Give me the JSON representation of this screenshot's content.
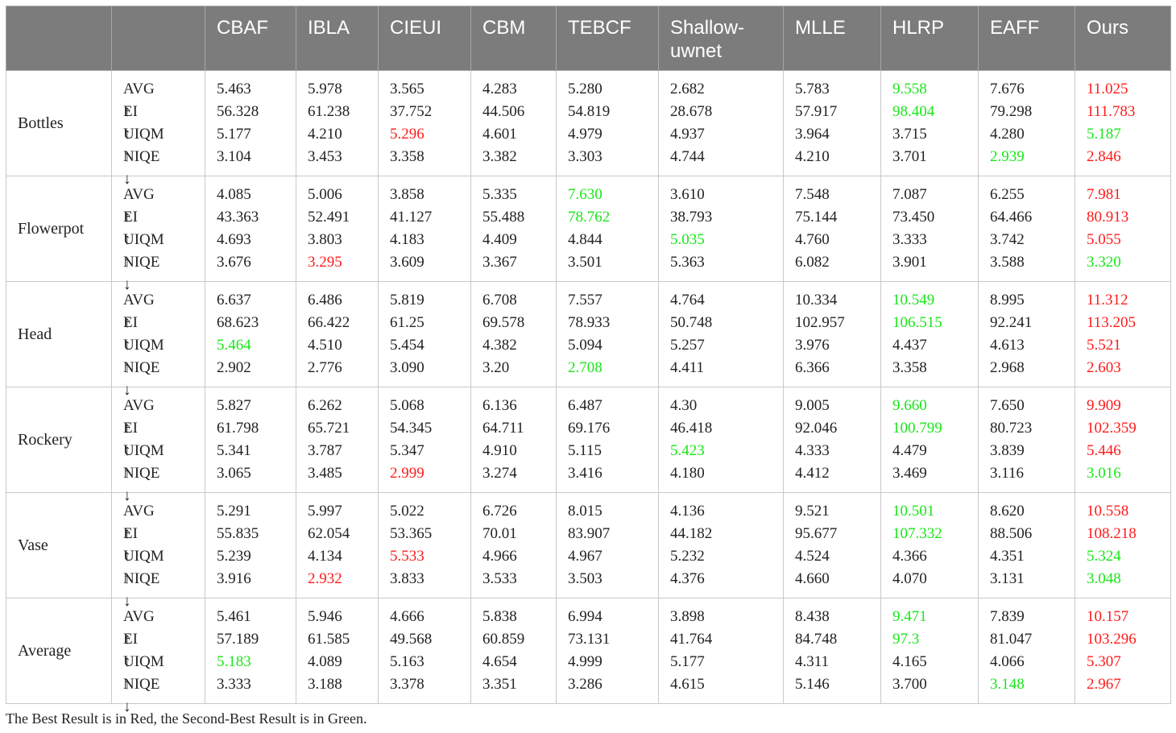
{
  "table": {
    "columns": [
      "CBAF",
      "IBLA",
      "CIEUI",
      "CBM",
      "TEBCF",
      "Shallow-uwnet",
      "MLLE",
      "HLRP",
      "EAFF",
      "Ours"
    ],
    "metric_rows": [
      {
        "name": "AVG",
        "arrow": "↑"
      },
      {
        "name": "EI",
        "arrow": "↑"
      },
      {
        "name": "UIQM",
        "arrow": "↑"
      },
      {
        "name": "NIQE",
        "arrow": "↓"
      }
    ],
    "groups": [
      {
        "name": "Bottles",
        "cells": [
          [
            [
              "5.463",
              "n"
            ],
            [
              "56.328",
              "n"
            ],
            [
              "5.177",
              "n"
            ],
            [
              "3.104",
              "n"
            ]
          ],
          [
            [
              "5.978",
              "n"
            ],
            [
              "61.238",
              "n"
            ],
            [
              "4.210",
              "n"
            ],
            [
              "3.453",
              "n"
            ]
          ],
          [
            [
              "3.565",
              "n"
            ],
            [
              "37.752",
              "n"
            ],
            [
              "5.296",
              "r"
            ],
            [
              "3.358",
              "n"
            ]
          ],
          [
            [
              "4.283",
              "n"
            ],
            [
              "44.506",
              "n"
            ],
            [
              "4.601",
              "n"
            ],
            [
              "3.382",
              "n"
            ]
          ],
          [
            [
              "5.280",
              "n"
            ],
            [
              "54.819",
              "n"
            ],
            [
              "4.979",
              "n"
            ],
            [
              "3.303",
              "n"
            ]
          ],
          [
            [
              "2.682",
              "n"
            ],
            [
              "28.678",
              "n"
            ],
            [
              "4.937",
              "n"
            ],
            [
              "4.744",
              "n"
            ]
          ],
          [
            [
              "5.783",
              "n"
            ],
            [
              "57.917",
              "n"
            ],
            [
              "3.964",
              "n"
            ],
            [
              "4.210",
              "n"
            ]
          ],
          [
            [
              "9.558",
              "g"
            ],
            [
              "98.404",
              "g"
            ],
            [
              "3.715",
              "n"
            ],
            [
              "3.701",
              "n"
            ]
          ],
          [
            [
              "7.676",
              "n"
            ],
            [
              "79.298",
              "n"
            ],
            [
              "4.280",
              "n"
            ],
            [
              "2.939",
              "g"
            ]
          ],
          [
            [
              "11.025",
              "r"
            ],
            [
              "111.783",
              "r"
            ],
            [
              "5.187",
              "g"
            ],
            [
              "2.846",
              "r"
            ]
          ]
        ]
      },
      {
        "name": "Flowerpot",
        "cells": [
          [
            [
              "4.085",
              "n"
            ],
            [
              "43.363",
              "n"
            ],
            [
              "4.693",
              "n"
            ],
            [
              "3.676",
              "n"
            ]
          ],
          [
            [
              "5.006",
              "n"
            ],
            [
              "52.491",
              "n"
            ],
            [
              "3.803",
              "n"
            ],
            [
              "3.295",
              "r"
            ]
          ],
          [
            [
              "3.858",
              "n"
            ],
            [
              "41.127",
              "n"
            ],
            [
              "4.183",
              "n"
            ],
            [
              "3.609",
              "n"
            ]
          ],
          [
            [
              "5.335",
              "n"
            ],
            [
              "55.488",
              "n"
            ],
            [
              "4.409",
              "n"
            ],
            [
              "3.367",
              "n"
            ]
          ],
          [
            [
              "7.630",
              "g"
            ],
            [
              "78.762",
              "g"
            ],
            [
              "4.844",
              "n"
            ],
            [
              "3.501",
              "n"
            ]
          ],
          [
            [
              "3.610",
              "n"
            ],
            [
              "38.793",
              "n"
            ],
            [
              "5.035",
              "g"
            ],
            [
              "5.363",
              "n"
            ]
          ],
          [
            [
              "7.548",
              "n"
            ],
            [
              "75.144",
              "n"
            ],
            [
              "4.760",
              "n"
            ],
            [
              "6.082",
              "n"
            ]
          ],
          [
            [
              "7.087",
              "n"
            ],
            [
              "73.450",
              "n"
            ],
            [
              "3.333",
              "n"
            ],
            [
              "3.901",
              "n"
            ]
          ],
          [
            [
              "6.255",
              "n"
            ],
            [
              "64.466",
              "n"
            ],
            [
              "3.742",
              "n"
            ],
            [
              "3.588",
              "n"
            ]
          ],
          [
            [
              "7.981",
              "r"
            ],
            [
              "80.913",
              "r"
            ],
            [
              "5.055",
              "r"
            ],
            [
              "3.320",
              "g"
            ]
          ]
        ]
      },
      {
        "name": "Head",
        "cells": [
          [
            [
              "6.637",
              "n"
            ],
            [
              "68.623",
              "n"
            ],
            [
              "5.464",
              "g"
            ],
            [
              "2.902",
              "n"
            ]
          ],
          [
            [
              "6.486",
              "n"
            ],
            [
              "66.422",
              "n"
            ],
            [
              "4.510",
              "n"
            ],
            [
              "2.776",
              "n"
            ]
          ],
          [
            [
              "5.819",
              "n"
            ],
            [
              "61.25",
              "n"
            ],
            [
              "5.454",
              "n"
            ],
            [
              "3.090",
              "n"
            ]
          ],
          [
            [
              "6.708",
              "n"
            ],
            [
              "69.578",
              "n"
            ],
            [
              "4.382",
              "n"
            ],
            [
              "3.20",
              "n"
            ]
          ],
          [
            [
              "7.557",
              "n"
            ],
            [
              "78.933",
              "n"
            ],
            [
              "5.094",
              "n"
            ],
            [
              "2.708",
              "g"
            ]
          ],
          [
            [
              "4.764",
              "n"
            ],
            [
              "50.748",
              "n"
            ],
            [
              "5.257",
              "n"
            ],
            [
              "4.411",
              "n"
            ]
          ],
          [
            [
              "10.334",
              "n"
            ],
            [
              "102.957",
              "n"
            ],
            [
              "3.976",
              "n"
            ],
            [
              "6.366",
              "n"
            ]
          ],
          [
            [
              "10.549",
              "g"
            ],
            [
              "106.515",
              "g"
            ],
            [
              "4.437",
              "n"
            ],
            [
              "3.358",
              "n"
            ]
          ],
          [
            [
              "8.995",
              "n"
            ],
            [
              "92.241",
              "n"
            ],
            [
              "4.613",
              "n"
            ],
            [
              "2.968",
              "n"
            ]
          ],
          [
            [
              "11.312",
              "r"
            ],
            [
              "113.205",
              "r"
            ],
            [
              "5.521",
              "r"
            ],
            [
              "2.603",
              "r"
            ]
          ]
        ]
      },
      {
        "name": "Rockery",
        "cells": [
          [
            [
              "5.827",
              "n"
            ],
            [
              "61.798",
              "n"
            ],
            [
              "5.341",
              "n"
            ],
            [
              "3.065",
              "n"
            ]
          ],
          [
            [
              "6.262",
              "n"
            ],
            [
              "65.721",
              "n"
            ],
            [
              "3.787",
              "n"
            ],
            [
              "3.485",
              "n"
            ]
          ],
          [
            [
              "5.068",
              "n"
            ],
            [
              "54.345",
              "n"
            ],
            [
              "5.347",
              "n"
            ],
            [
              "2.999",
              "r"
            ]
          ],
          [
            [
              "6.136",
              "n"
            ],
            [
              "64.711",
              "n"
            ],
            [
              "4.910",
              "n"
            ],
            [
              "3.274",
              "n"
            ]
          ],
          [
            [
              "6.487",
              "n"
            ],
            [
              "69.176",
              "n"
            ],
            [
              "5.115",
              "n"
            ],
            [
              "3.416",
              "n"
            ]
          ],
          [
            [
              "4.30",
              "n"
            ],
            [
              "46.418",
              "n"
            ],
            [
              "5.423",
              "g"
            ],
            [
              "4.180",
              "n"
            ]
          ],
          [
            [
              "9.005",
              "n"
            ],
            [
              "92.046",
              "n"
            ],
            [
              "4.333",
              "n"
            ],
            [
              "4.412",
              "n"
            ]
          ],
          [
            [
              "9.660",
              "g"
            ],
            [
              "100.799",
              "g"
            ],
            [
              "4.479",
              "n"
            ],
            [
              "3.469",
              "n"
            ]
          ],
          [
            [
              "7.650",
              "n"
            ],
            [
              "80.723",
              "n"
            ],
            [
              "3.839",
              "n"
            ],
            [
              "3.116",
              "n"
            ]
          ],
          [
            [
              "9.909",
              "r"
            ],
            [
              "102.359",
              "r"
            ],
            [
              "5.446",
              "r"
            ],
            [
              "3.016",
              "g"
            ]
          ]
        ]
      },
      {
        "name": "Vase",
        "cells": [
          [
            [
              "5.291",
              "n"
            ],
            [
              "55.835",
              "n"
            ],
            [
              "5.239",
              "n"
            ],
            [
              "3.916",
              "n"
            ]
          ],
          [
            [
              "5.997",
              "n"
            ],
            [
              "62.054",
              "n"
            ],
            [
              "4.134",
              "n"
            ],
            [
              "2.932",
              "r"
            ]
          ],
          [
            [
              "5.022",
              "n"
            ],
            [
              "53.365",
              "n"
            ],
            [
              "5.533",
              "r"
            ],
            [
              "3.833",
              "n"
            ]
          ],
          [
            [
              "6.726",
              "n"
            ],
            [
              "70.01",
              "n"
            ],
            [
              "4.966",
              "n"
            ],
            [
              "3.533",
              "n"
            ]
          ],
          [
            [
              "8.015",
              "n"
            ],
            [
              "83.907",
              "n"
            ],
            [
              "4.967",
              "n"
            ],
            [
              "3.503",
              "n"
            ]
          ],
          [
            [
              "4.136",
              "n"
            ],
            [
              "44.182",
              "n"
            ],
            [
              "5.232",
              "n"
            ],
            [
              "4.376",
              "n"
            ]
          ],
          [
            [
              "9.521",
              "n"
            ],
            [
              "95.677",
              "n"
            ],
            [
              "4.524",
              "n"
            ],
            [
              "4.660",
              "n"
            ]
          ],
          [
            [
              "10.501",
              "g"
            ],
            [
              "107.332",
              "g"
            ],
            [
              "4.366",
              "n"
            ],
            [
              "4.070",
              "n"
            ]
          ],
          [
            [
              "8.620",
              "n"
            ],
            [
              "88.506",
              "n"
            ],
            [
              "4.351",
              "n"
            ],
            [
              "3.131",
              "n"
            ]
          ],
          [
            [
              "10.558",
              "r"
            ],
            [
              "108.218",
              "r"
            ],
            [
              "5.324",
              "g"
            ],
            [
              "3.048",
              "g"
            ]
          ]
        ]
      },
      {
        "name": "Average",
        "cells": [
          [
            [
              "5.461",
              "n"
            ],
            [
              "57.189",
              "n"
            ],
            [
              "5.183",
              "g"
            ],
            [
              "3.333",
              "n"
            ]
          ],
          [
            [
              "5.946",
              "n"
            ],
            [
              "61.585",
              "n"
            ],
            [
              "4.089",
              "n"
            ],
            [
              "3.188",
              "n"
            ]
          ],
          [
            [
              "4.666",
              "n"
            ],
            [
              "49.568",
              "n"
            ],
            [
              "5.163",
              "n"
            ],
            [
              "3.378",
              "n"
            ]
          ],
          [
            [
              "5.838",
              "n"
            ],
            [
              "60.859",
              "n"
            ],
            [
              "4.654",
              "n"
            ],
            [
              "3.351",
              "n"
            ]
          ],
          [
            [
              "6.994",
              "n"
            ],
            [
              "73.131",
              "n"
            ],
            [
              "4.999",
              "n"
            ],
            [
              "3.286",
              "n"
            ]
          ],
          [
            [
              "3.898",
              "n"
            ],
            [
              "41.764",
              "n"
            ],
            [
              "5.177",
              "n"
            ],
            [
              "4.615",
              "n"
            ]
          ],
          [
            [
              "8.438",
              "n"
            ],
            [
              "84.748",
              "n"
            ],
            [
              "4.311",
              "n"
            ],
            [
              "5.146",
              "n"
            ]
          ],
          [
            [
              "9.471",
              "g"
            ],
            [
              "97.3",
              "g"
            ],
            [
              "4.165",
              "n"
            ],
            [
              "3.700",
              "n"
            ]
          ],
          [
            [
              "7.839",
              "n"
            ],
            [
              "81.047",
              "n"
            ],
            [
              "4.066",
              "n"
            ],
            [
              "3.148",
              "g"
            ]
          ],
          [
            [
              "10.157",
              "r"
            ],
            [
              "103.296",
              "r"
            ],
            [
              "5.307",
              "r"
            ],
            [
              "2.967",
              "r"
            ]
          ]
        ]
      }
    ]
  },
  "colors": {
    "best": "#ff1a1a",
    "second_best": "#19e619",
    "header_bg": "#7c7c7c"
  },
  "footnote": "The Best Result is in Red, the Second-Best Result is in Green."
}
